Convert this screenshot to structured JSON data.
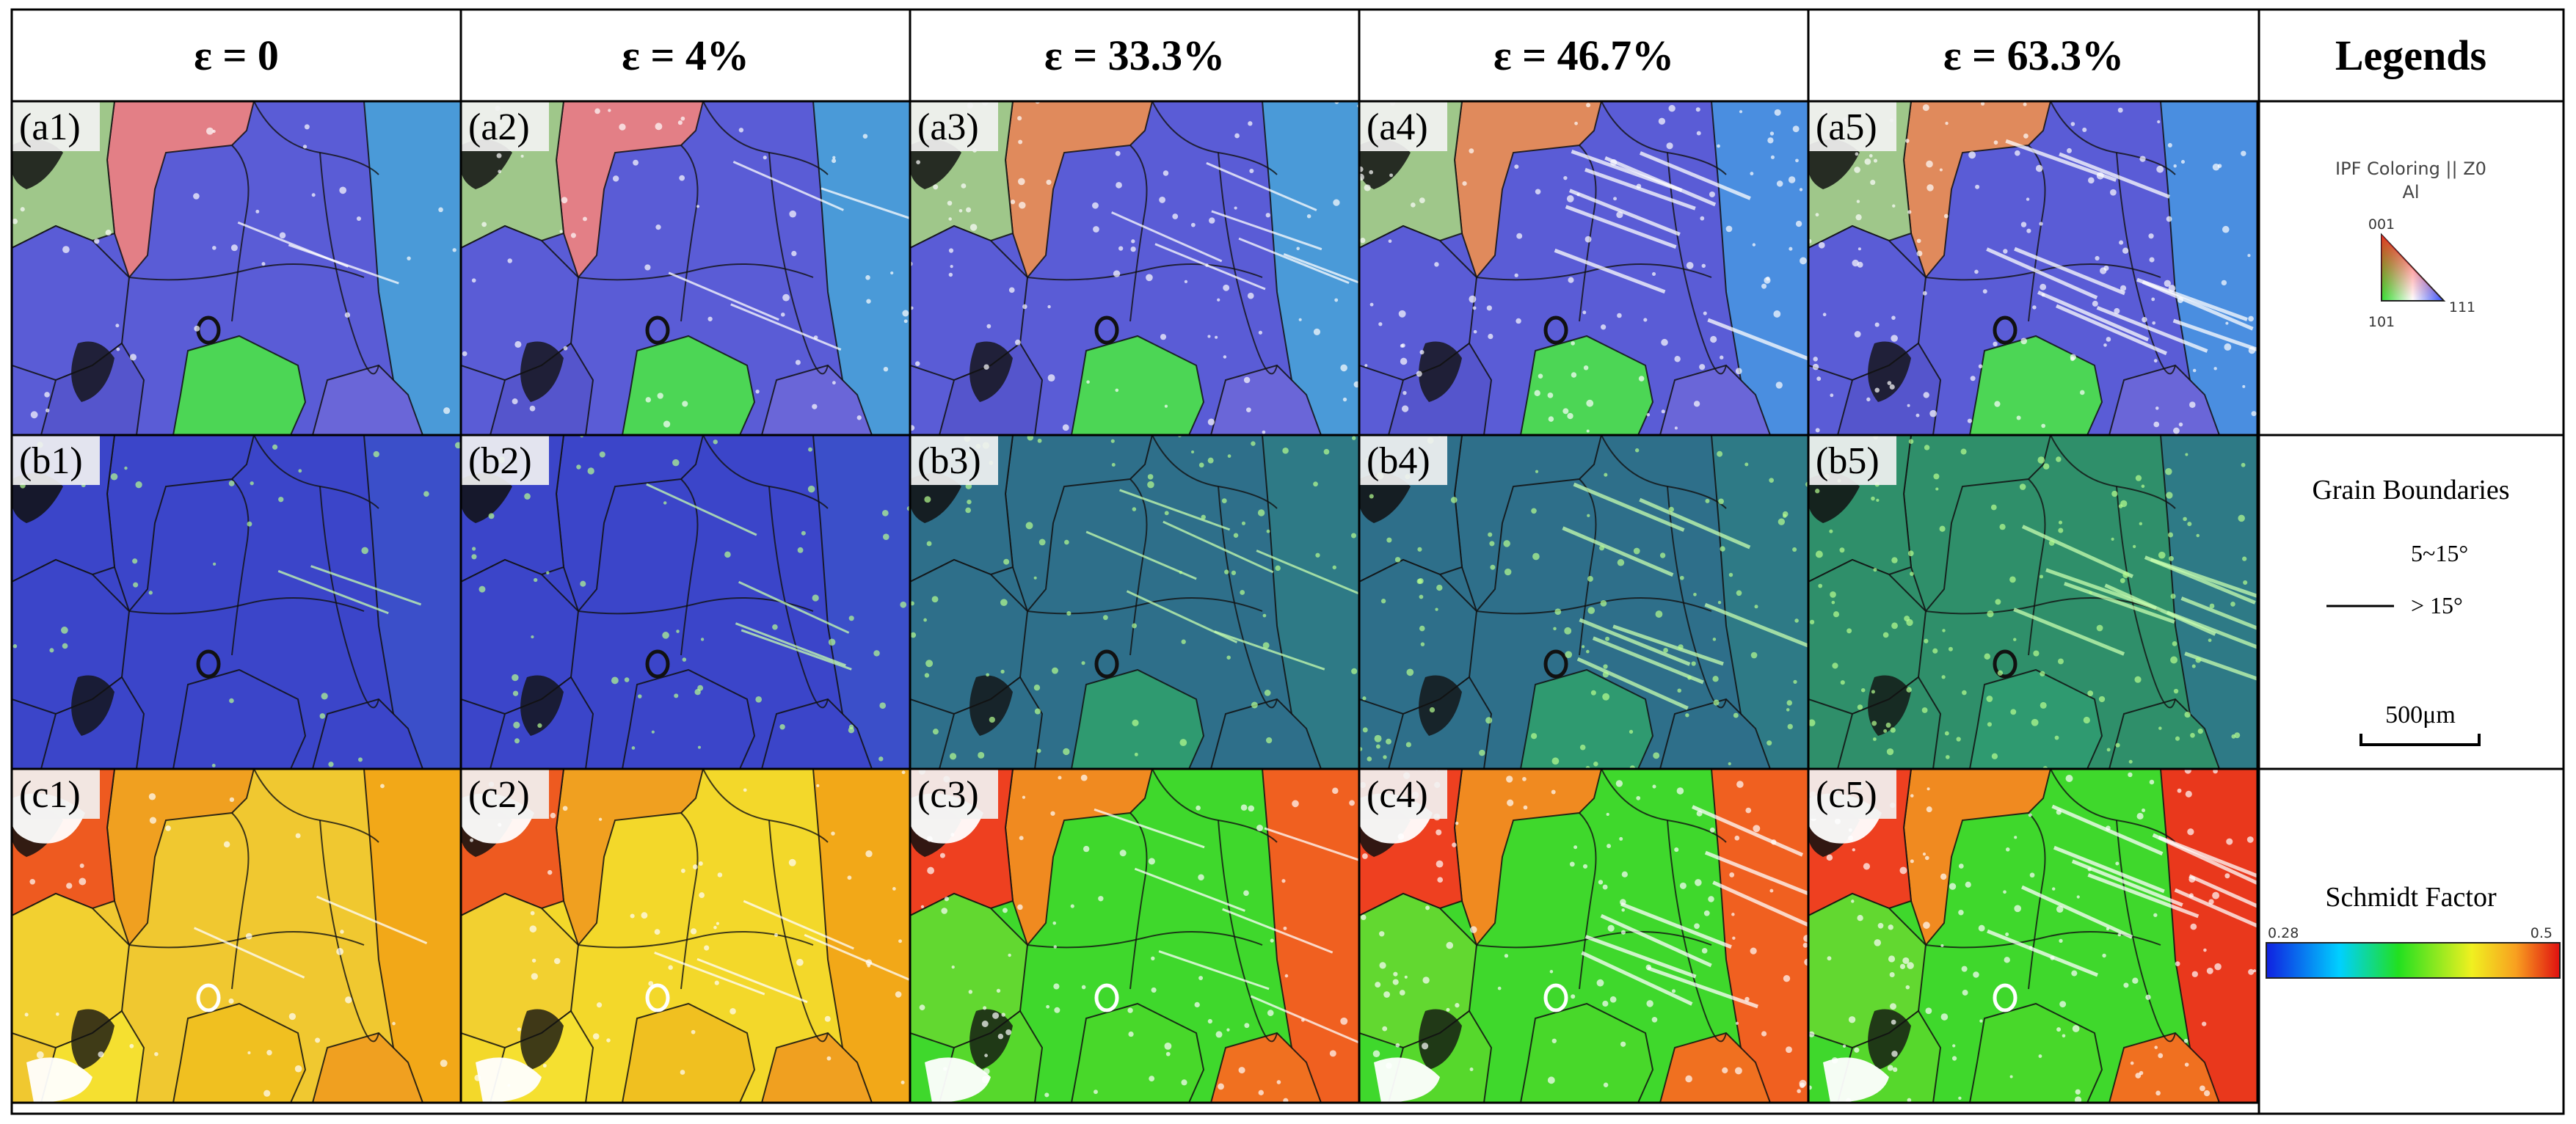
{
  "headers": {
    "col1": "ε = 0",
    "col2": "ε = 4%",
    "col3": "ε = 33.3%",
    "col4": "ε = 46.7%",
    "col5": "ε = 63.3%",
    "legends": "Legends"
  },
  "panel_labels": {
    "a1": "(a1)",
    "a2": "(a2)",
    "a3": "(a3)",
    "a4": "(a4)",
    "a5": "(a5)",
    "b1": "(b1)",
    "b2": "(b2)",
    "b3": "(b3)",
    "b4": "(b4)",
    "b5": "(b5)",
    "c1": "(c1)",
    "c2": "(c2)",
    "c3": "(c3)",
    "c4": "(c4)",
    "c5": "(c5)"
  },
  "legend_ipf": {
    "title": "IPF Coloring || Z0",
    "material": "Al",
    "v001": "001",
    "v101": "101",
    "v111": "111"
  },
  "legend_gb": {
    "title": "Grain Boundaries",
    "low": "5~15°",
    "high": "> 15°",
    "scale": "500μm"
  },
  "legend_sf": {
    "title": "Schmidt Factor",
    "min": "0.28",
    "max": "0.5"
  },
  "colors": {
    "ipf_blue": "#5a5cd6",
    "ipf_pink": "#e37f86",
    "ipf_green": "#4cd655",
    "gb_blue": "#3b45c9",
    "gb_green": "#2f8f78",
    "sf_yellow": "#f2d928",
    "sf_orange": "#f3a318",
    "sf_red": "#e9381c",
    "sf_green": "#3fd82c"
  }
}
